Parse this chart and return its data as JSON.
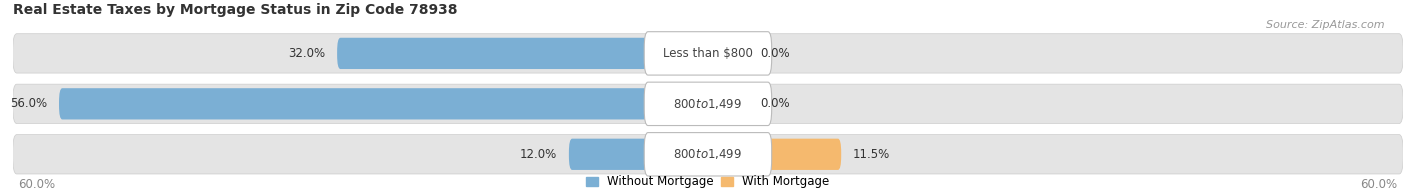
{
  "title": "Real Estate Taxes by Mortgage Status in Zip Code 78938",
  "source": "Source: ZipAtlas.com",
  "rows": [
    {
      "without_pct": 32.0,
      "with_pct": 0.0,
      "label": "Less than $800"
    },
    {
      "without_pct": 56.0,
      "with_pct": 0.0,
      "label": "$800 to $1,499"
    },
    {
      "without_pct": 12.0,
      "with_pct": 11.5,
      "label": "$800 to $1,499"
    }
  ],
  "xlim": 60.0,
  "without_color": "#7bafd4",
  "with_color": "#f5b96e",
  "bar_height": 0.62,
  "bg_color": "#f4f4f4",
  "bar_bg_color": "#e4e4e4",
  "legend_without": "Without Mortgage",
  "legend_with": "With Mortgage",
  "axis_label": "60.0%",
  "title_fontsize": 10,
  "source_fontsize": 8,
  "label_fontsize": 8.5,
  "tick_fontsize": 8.5,
  "pct_fontsize": 8.5
}
